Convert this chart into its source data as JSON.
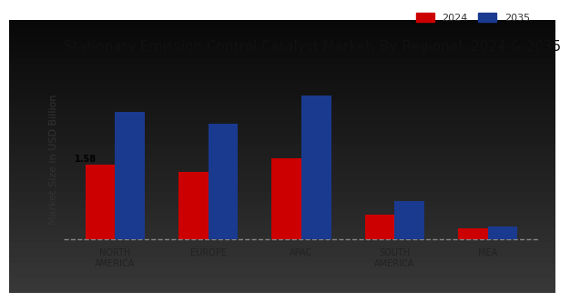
{
  "title": "Stationary Emission Control Catalyst Market, By Regional, 2024 & 2035",
  "ylabel": "Market Size in USD Billion",
  "categories": [
    "NORTH\nAMERICA",
    "EUROPE",
    "APAC",
    "SOUTH\nAMERICA",
    "MEA"
  ],
  "values_2024": [
    1.58,
    1.42,
    1.72,
    0.52,
    0.22
  ],
  "values_2035": [
    2.7,
    2.45,
    3.05,
    0.8,
    0.26
  ],
  "color_2024": "#cc0000",
  "color_2035": "#1a3a8f",
  "annotation_text": "1.58",
  "background_color": "#e0e0e0",
  "bar_width": 0.32,
  "legend_labels": [
    "2024",
    "2035"
  ],
  "title_fontsize": 11,
  "axis_label_fontsize": 8,
  "tick_fontsize": 7,
  "red_bar_color": "#cc0000",
  "ylim_max": 3.5
}
